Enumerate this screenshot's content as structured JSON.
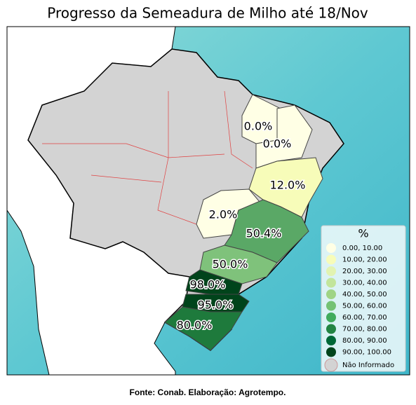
{
  "header": {
    "title": "Progresso da Semeadura de Milho até 18/Nov"
  },
  "regions": [
    {
      "label": "0.0%",
      "color": "#ffffe5"
    },
    {
      "label": "0.0%",
      "color": "#ffffe5"
    },
    {
      "label": "12.0%",
      "color": "#f7fcb9"
    },
    {
      "label": "2.0%",
      "color": "#ffffe5"
    },
    {
      "label": "50.4%",
      "color": "#5aa866"
    },
    {
      "label": "50.0%",
      "color": "#7fc27b"
    },
    {
      "label": "98.0%",
      "color": "#00441b"
    },
    {
      "label": "95.0%",
      "color": "#00441b"
    },
    {
      "label": "80.0%",
      "color": "#1e7a3c"
    }
  ],
  "legend": {
    "title": "%",
    "items": [
      {
        "label": " 0.00,  10.00",
        "color": "#ffffe5"
      },
      {
        "label": "10.00,  20.00",
        "color": "#f7fcb9"
      },
      {
        "label": "20.00,  30.00",
        "color": "#e2f3b1"
      },
      {
        "label": "30.00,  40.00",
        "color": "#c2e59b"
      },
      {
        "label": "40.00,  50.00",
        "color": "#9fd485"
      },
      {
        "label": "50.00,  60.00",
        "color": "#74c274"
      },
      {
        "label": "60.00,  70.00",
        "color": "#41ab5d"
      },
      {
        "label": "70.00,  80.00",
        "color": "#238443"
      },
      {
        "label": "80.00,  90.00",
        "color": "#006837"
      },
      {
        "label": "90.00, 100.00",
        "color": "#00441b"
      },
      {
        "label": "Não Informado",
        "color": "#d3d3d3"
      }
    ]
  },
  "footer": {
    "source": "Fonte: Conab. Elaboração: Agrotempo."
  }
}
